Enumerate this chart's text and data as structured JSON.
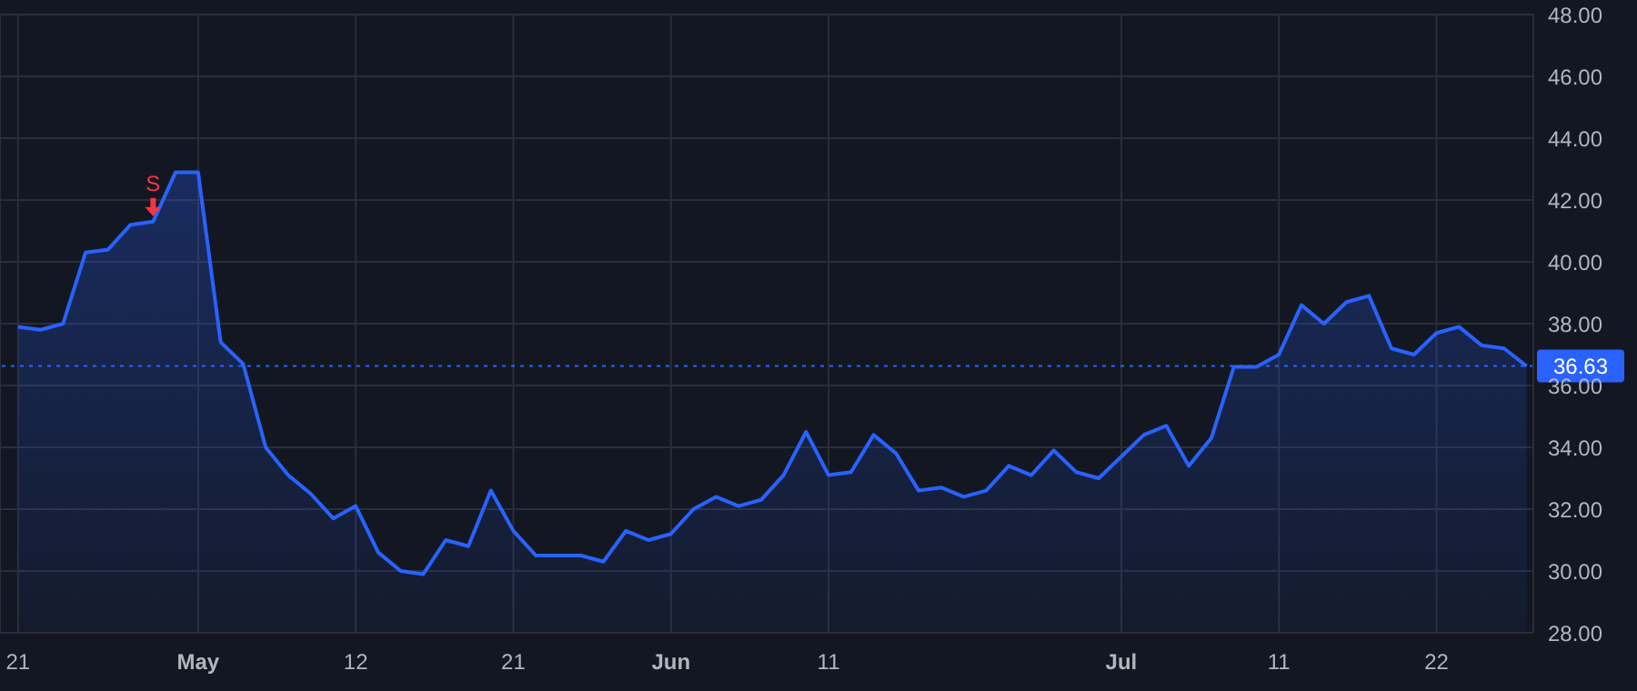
{
  "chart_data": {
    "type": "area",
    "categories": [
      "21",
      null,
      null,
      null,
      null,
      null,
      null,
      null,
      "May",
      null,
      null,
      null,
      null,
      null,
      null,
      "12",
      null,
      null,
      null,
      null,
      null,
      null,
      "21",
      null,
      null,
      null,
      null,
      null,
      null,
      "Jun",
      null,
      null,
      null,
      null,
      null,
      null,
      "11",
      null,
      null,
      null,
      null,
      null,
      null,
      null,
      null,
      null,
      null,
      null,
      null,
      "Jul",
      null,
      null,
      null,
      null,
      null,
      null,
      "11",
      null,
      null,
      null,
      null,
      null,
      null,
      "22",
      null,
      null,
      null,
      null
    ],
    "series": [
      {
        "color": "#2962ff",
        "values": [
          37.9,
          37.8,
          38.0,
          40.3,
          40.4,
          41.2,
          41.3,
          42.9,
          42.9,
          37.4,
          36.7,
          34.0,
          33.1,
          32.5,
          31.7,
          32.1,
          30.6,
          30.0,
          29.9,
          31.0,
          30.8,
          32.6,
          31.3,
          30.5,
          30.5,
          30.5,
          30.3,
          31.3,
          31.0,
          31.2,
          32.0,
          32.4,
          32.1,
          32.3,
          33.1,
          34.5,
          33.1,
          33.2,
          34.4,
          33.8,
          32.6,
          32.7,
          32.4,
          32.6,
          33.4,
          33.1,
          33.9,
          33.2,
          33.0,
          33.7,
          34.4,
          34.7,
          33.4,
          34.3,
          36.6,
          36.6,
          37.0,
          38.6,
          38.0,
          38.7,
          38.9,
          37.2,
          37.0,
          37.7,
          37.9,
          37.3,
          37.2,
          36.63
        ]
      }
    ],
    "ylim": [
      28,
      48
    ],
    "yticks": [
      {
        "value": 28,
        "label": "28.00"
      },
      {
        "value": 30,
        "label": "30.00"
      },
      {
        "value": 32,
        "label": "32.00"
      },
      {
        "value": 34,
        "label": "34.00"
      },
      {
        "value": 36,
        "label": "36.00"
      },
      {
        "value": 38,
        "label": "38.00"
      },
      {
        "value": 40,
        "label": "40.00"
      },
      {
        "value": 42,
        "label": "42.00"
      },
      {
        "value": 44,
        "label": "44.00"
      },
      {
        "value": 46,
        "label": "46.00"
      },
      {
        "value": 48,
        "label": "48.00"
      }
    ],
    "grid": true,
    "ref_lines": [
      {
        "axis": "y",
        "value": 36.63,
        "label": "36.63",
        "color": "#2962ff",
        "line_style": "dotted"
      }
    ],
    "annotations": [
      {
        "text": "S",
        "y": 41.3
      }
    ]
  }
}
